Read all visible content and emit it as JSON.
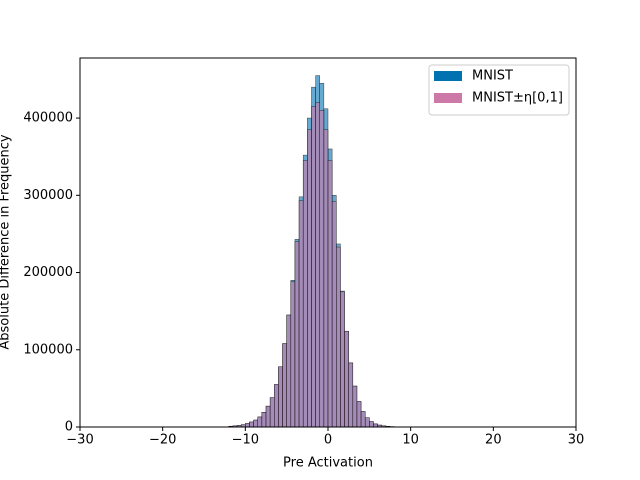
{
  "chart_data": {
    "type": "histogram",
    "xlabel": "Pre Activation",
    "ylabel": "Absolute Difference in Frequency",
    "bins": [
      -12,
      -11.5,
      -11,
      -10.5,
      -10,
      -9.5,
      -9,
      -8.5,
      -8,
      -7.5,
      -7,
      -6.5,
      -6,
      -5.5,
      -5,
      -4.5,
      -4,
      -3.5,
      -3,
      -2.5,
      -2,
      -1.5,
      -1,
      -0.5,
      0,
      0.5,
      1,
      1.5,
      2,
      2.5,
      3,
      3.5,
      4,
      4.5,
      5,
      5.5,
      6,
      6.5,
      7,
      7.5,
      8,
      8.5,
      9,
      9.5,
      10
    ],
    "series": [
      {
        "name": "MNIST",
        "color": "#0072b2",
        "values": [
          1000,
          1500,
          2000,
          3000,
          4500,
          6500,
          9000,
          13000,
          19000,
          27000,
          38000,
          55000,
          78000,
          108000,
          145000,
          190000,
          243000,
          298000,
          352000,
          400000,
          440000,
          455000,
          445000,
          412000,
          360000,
          300000,
          237000,
          176000,
          124000,
          83000,
          53000,
          33000,
          20000,
          12000,
          7000,
          4000,
          2500,
          1500,
          900,
          500,
          300,
          200,
          100,
          50
        ]
      },
      {
        "name": "MNIST±η[0,1]",
        "color": "#cc79a7",
        "values": [
          1000,
          1500,
          2000,
          3000,
          4500,
          6500,
          9000,
          13000,
          19000,
          27000,
          38000,
          55000,
          78000,
          108000,
          145000,
          188000,
          240000,
          293000,
          345000,
          385000,
          415000,
          420000,
          410000,
          385000,
          345000,
          292000,
          233000,
          175000,
          124000,
          83000,
          53000,
          33000,
          20000,
          12000,
          7000,
          4000,
          2500,
          1500,
          900,
          500,
          300,
          200,
          100,
          50
        ]
      }
    ],
    "xlim": [
      -30,
      30
    ],
    "xticks": [
      {
        "value": -30,
        "label": "−30"
      },
      {
        "value": -20,
        "label": "−20"
      },
      {
        "value": -10,
        "label": "−10"
      },
      0,
      10,
      20,
      30
    ],
    "ylim": [
      0,
      477750
    ],
    "yticks": [
      0,
      100000,
      200000,
      300000,
      400000
    ],
    "legend": "upper right"
  }
}
